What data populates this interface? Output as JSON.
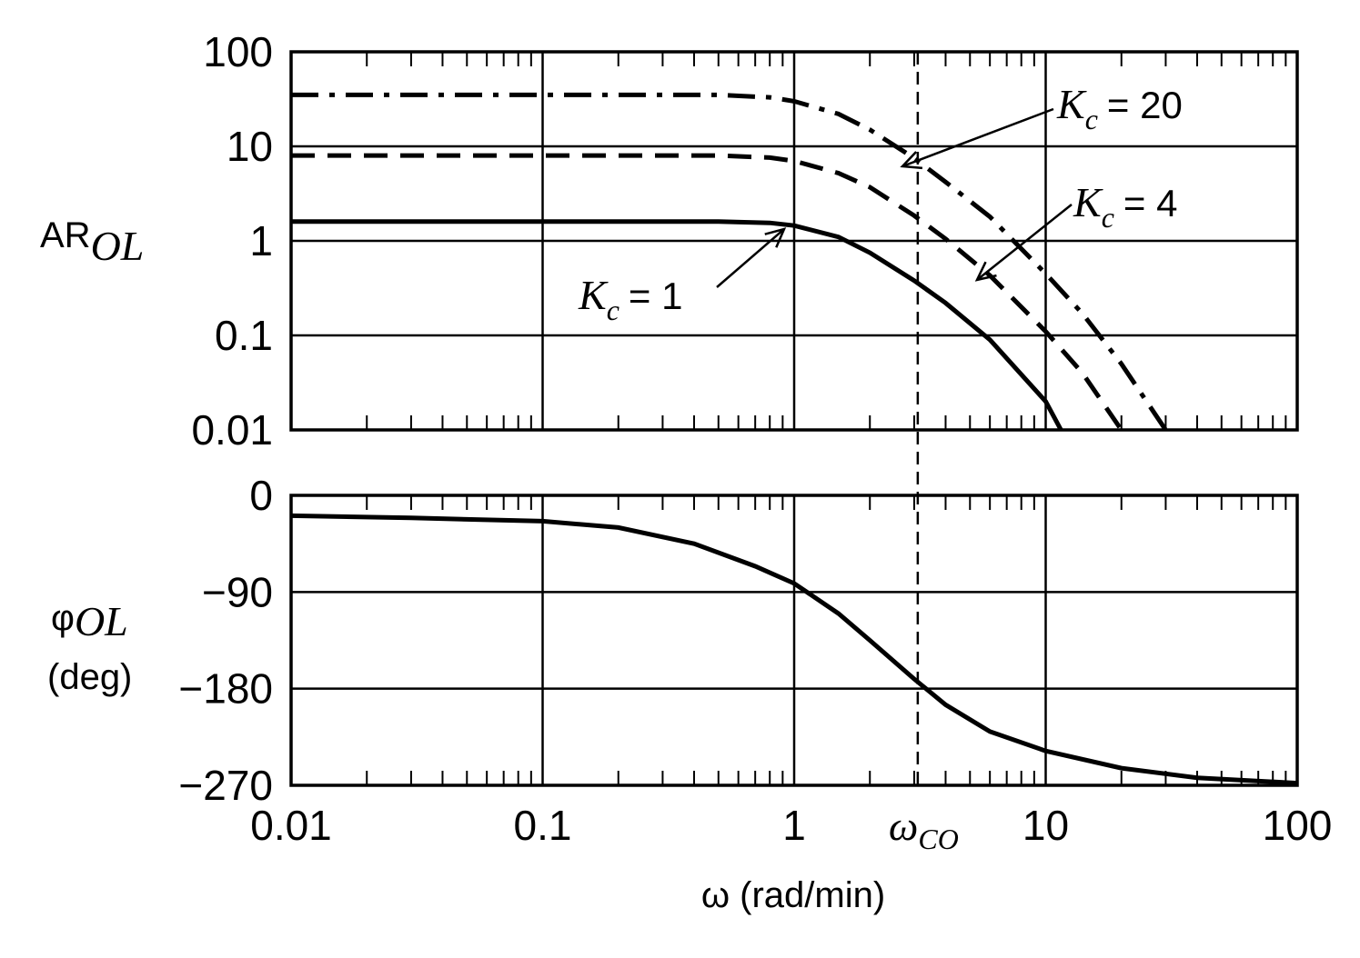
{
  "chart_data": [
    {
      "type": "line",
      "panel": "magnitude",
      "ylabel": "AR",
      "ylabel_sub": "OL",
      "x_scale": "log",
      "y_scale": "log",
      "xlim": [
        0.01,
        100
      ],
      "ylim": [
        0.01,
        100
      ],
      "yticks": [
        "100",
        "10",
        "1",
        "0.1",
        "0.01"
      ],
      "grid": true,
      "series": [
        {
          "name": "K_c = 1",
          "label_symbol": "K",
          "label_sub": "c",
          "label_eq": "= 1",
          "style": "solid",
          "x": [
            0.01,
            0.1,
            0.5,
            0.8,
            1,
            1.5,
            2,
            3,
            4,
            6,
            10,
            11.5
          ],
          "y": [
            1.6,
            1.6,
            1.6,
            1.55,
            1.45,
            1.1,
            0.75,
            0.38,
            0.22,
            0.09,
            0.02,
            0.01
          ]
        },
        {
          "name": "K_c = 4",
          "label_symbol": "K",
          "label_sub": "c",
          "label_eq": "= 4",
          "style": "dashed",
          "x": [
            0.01,
            0.1,
            0.5,
            0.8,
            1,
            1.5,
            2,
            3,
            4,
            6,
            10,
            14,
            20
          ],
          "y": [
            8,
            8,
            8,
            7.6,
            7,
            5.2,
            3.7,
            1.85,
            1.05,
            0.43,
            0.11,
            0.04,
            0.01
          ]
        },
        {
          "name": "K_c = 20",
          "label_symbol": "K",
          "label_sub": "c",
          "label_eq": "= 20",
          "style": "dash-dot",
          "x": [
            0.01,
            0.1,
            0.5,
            0.8,
            1,
            1.5,
            2,
            3,
            4,
            6,
            10,
            14,
            20,
            30
          ],
          "y": [
            35,
            35,
            35,
            33,
            30,
            22,
            15,
            7.5,
            4.2,
            1.8,
            0.45,
            0.17,
            0.05,
            0.01
          ]
        }
      ]
    },
    {
      "type": "line",
      "panel": "phase",
      "ylabel": "φ",
      "ylabel_sub": "OL",
      "ylabel_unit": "(deg)",
      "x_scale": "log",
      "xlim": [
        0.01,
        100
      ],
      "ylim": [
        -270,
        0
      ],
      "yticks": [
        "0",
        "−90",
        "−180",
        "−270"
      ],
      "xticks": [
        "0.01",
        "0.1",
        "1",
        "10",
        "100"
      ],
      "xlabel": "ω (rad/min)",
      "grid": true,
      "series": [
        {
          "style": "solid",
          "x": [
            0.01,
            0.03,
            0.1,
            0.2,
            0.4,
            0.7,
            1,
            1.5,
            2,
            3,
            4,
            6,
            10,
            20,
            40,
            100
          ],
          "y": [
            -19,
            -21,
            -24,
            -30,
            -45,
            -66,
            -82,
            -110,
            -135,
            -171,
            -195,
            -220,
            -238,
            -254,
            -263,
            -268
          ]
        }
      ]
    }
  ],
  "crossover": {
    "x": 3.1,
    "symbol": "ω",
    "sub": "CO"
  }
}
